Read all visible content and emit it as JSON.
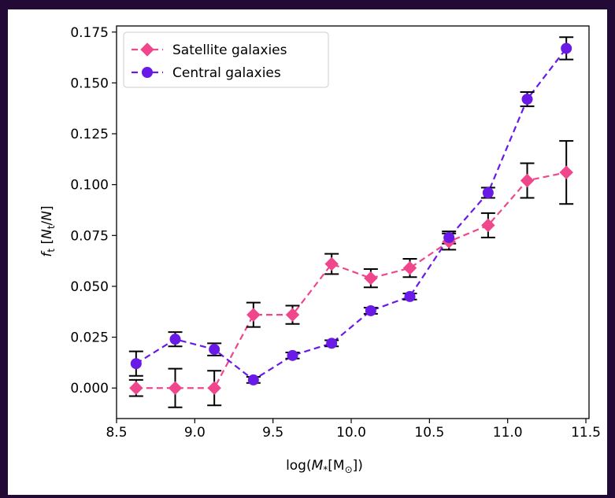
{
  "chart_data": {
    "type": "line",
    "title": "",
    "xlabel_parts": {
      "prefix": "log(",
      "symbol": "M",
      "subscript": "*",
      "unit_open": "[M",
      "unit_sub": "⊙",
      "unit_close": "])"
    },
    "ylabel_parts": {
      "symbol": "f",
      "subscript": "t",
      "bracket_open": " [",
      "n": "N",
      "n_sub": "t",
      "slash": "/",
      "n2": "N",
      "bracket_close": "]"
    },
    "xlim": [
      8.5,
      11.52
    ],
    "ylim": [
      -0.015,
      0.178
    ],
    "xticks": [
      8.5,
      9.0,
      9.5,
      10.0,
      10.5,
      11.0,
      11.5
    ],
    "xtick_labels": [
      "8.5",
      "9.0",
      "9.5",
      "10.0",
      "10.5",
      "11.0",
      "11.5"
    ],
    "yticks": [
      0.0,
      0.025,
      0.05,
      0.075,
      0.1,
      0.125,
      0.15,
      0.175
    ],
    "ytick_labels": [
      "0.000",
      "0.025",
      "0.050",
      "0.075",
      "0.100",
      "0.125",
      "0.150",
      "0.175"
    ],
    "grid": false,
    "legend_position": "top-left",
    "errorbar_color": "#000000",
    "series": [
      {
        "name": "Satellite galaxies",
        "color": "#f0468c",
        "marker": "diamond",
        "linestyle": "dashed",
        "x": [
          8.625,
          8.875,
          9.125,
          9.375,
          9.625,
          9.875,
          10.125,
          10.375,
          10.625,
          10.875,
          11.125,
          11.375
        ],
        "y": [
          0.0,
          0.0,
          0.0,
          0.036,
          0.036,
          0.061,
          0.054,
          0.059,
          0.072,
          0.08,
          0.102,
          0.106
        ],
        "yerr": [
          0.004,
          0.0095,
          0.0085,
          0.006,
          0.0045,
          0.005,
          0.0045,
          0.0045,
          0.004,
          0.006,
          0.0085,
          0.0155
        ]
      },
      {
        "name": "Central galaxies",
        "color": "#6a1ae6",
        "marker": "circle",
        "linestyle": "dashed",
        "x": [
          8.625,
          8.875,
          9.125,
          9.375,
          9.625,
          9.875,
          10.125,
          10.375,
          10.625,
          10.875,
          11.125,
          11.375
        ],
        "y": [
          0.012,
          0.024,
          0.019,
          0.004,
          0.016,
          0.022,
          0.038,
          0.045,
          0.074,
          0.096,
          0.142,
          0.167
        ],
        "yerr": [
          0.006,
          0.0035,
          0.003,
          0.0015,
          0.0015,
          0.0015,
          0.0015,
          0.0015,
          0.003,
          0.0025,
          0.0035,
          0.0055
        ]
      }
    ]
  }
}
